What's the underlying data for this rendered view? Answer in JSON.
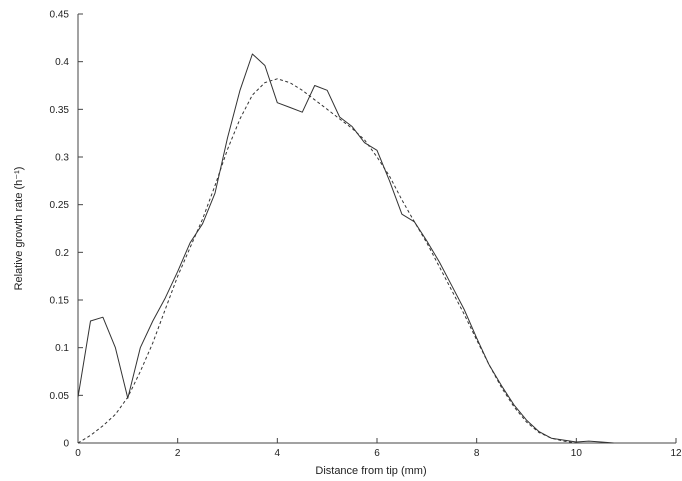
{
  "chart_data": {
    "type": "line",
    "title": "",
    "xlabel": "Distance from tip (mm)",
    "ylabel": "Relative growth rate (h⁻¹)",
    "xlim": [
      0,
      12
    ],
    "ylim": [
      0,
      0.45
    ],
    "x_ticks": [
      0,
      2,
      4,
      6,
      8,
      10,
      12
    ],
    "x_tick_labels": [
      "0",
      "2",
      "4",
      "6",
      "8",
      "10",
      "12"
    ],
    "y_ticks": [
      0,
      0.05,
      0.1,
      0.15,
      0.2,
      0.25,
      0.3,
      0.35,
      0.4,
      0.45
    ],
    "y_tick_labels": [
      "0",
      "0.05",
      "0.1",
      "0.15",
      "0.2",
      "0.25",
      "0.3",
      "0.35",
      "0.4",
      "0.45"
    ],
    "grid": false,
    "legend": "none",
    "series": [
      {
        "style": "solid",
        "color": "#333333",
        "points": [
          [
            0.0,
            0.048
          ],
          [
            0.25,
            0.128
          ],
          [
            0.5,
            0.132
          ],
          [
            0.75,
            0.1
          ],
          [
            1.0,
            0.047
          ],
          [
            1.25,
            0.1
          ],
          [
            1.5,
            0.128
          ],
          [
            1.75,
            0.152
          ],
          [
            2.0,
            0.18
          ],
          [
            2.25,
            0.21
          ],
          [
            2.5,
            0.23
          ],
          [
            2.75,
            0.262
          ],
          [
            3.0,
            0.32
          ],
          [
            3.25,
            0.37
          ],
          [
            3.5,
            0.408
          ],
          [
            3.75,
            0.396
          ],
          [
            4.0,
            0.357
          ],
          [
            4.25,
            0.352
          ],
          [
            4.5,
            0.347
          ],
          [
            4.75,
            0.375
          ],
          [
            5.0,
            0.37
          ],
          [
            5.25,
            0.342
          ],
          [
            5.5,
            0.332
          ],
          [
            5.75,
            0.315
          ],
          [
            6.0,
            0.307
          ],
          [
            6.25,
            0.275
          ],
          [
            6.5,
            0.24
          ],
          [
            6.75,
            0.232
          ],
          [
            7.0,
            0.212
          ],
          [
            7.25,
            0.19
          ],
          [
            7.5,
            0.165
          ],
          [
            7.75,
            0.14
          ],
          [
            8.0,
            0.11
          ],
          [
            8.25,
            0.082
          ],
          [
            8.5,
            0.06
          ],
          [
            8.75,
            0.04
          ],
          [
            9.0,
            0.024
          ],
          [
            9.25,
            0.012
          ],
          [
            9.5,
            0.005
          ],
          [
            9.75,
            0.003
          ],
          [
            10.0,
            0.001
          ],
          [
            10.25,
            0.002
          ],
          [
            10.5,
            0.001
          ],
          [
            10.75,
            0.0
          ]
        ]
      },
      {
        "style": "dashed",
        "color": "#333333",
        "points": [
          [
            0.0,
            0.0
          ],
          [
            0.25,
            0.008
          ],
          [
            0.5,
            0.018
          ],
          [
            0.75,
            0.03
          ],
          [
            1.0,
            0.048
          ],
          [
            1.25,
            0.075
          ],
          [
            1.5,
            0.105
          ],
          [
            1.75,
            0.14
          ],
          [
            2.0,
            0.175
          ],
          [
            2.25,
            0.205
          ],
          [
            2.5,
            0.235
          ],
          [
            2.75,
            0.27
          ],
          [
            3.0,
            0.308
          ],
          [
            3.25,
            0.34
          ],
          [
            3.5,
            0.365
          ],
          [
            3.75,
            0.378
          ],
          [
            4.0,
            0.382
          ],
          [
            4.25,
            0.378
          ],
          [
            4.5,
            0.37
          ],
          [
            4.75,
            0.36
          ],
          [
            5.0,
            0.35
          ],
          [
            5.25,
            0.34
          ],
          [
            5.5,
            0.33
          ],
          [
            5.75,
            0.318
          ],
          [
            6.0,
            0.3
          ],
          [
            6.25,
            0.28
          ],
          [
            6.5,
            0.255
          ],
          [
            6.75,
            0.232
          ],
          [
            7.0,
            0.21
          ],
          [
            7.25,
            0.185
          ],
          [
            7.5,
            0.16
          ],
          [
            7.75,
            0.135
          ],
          [
            8.0,
            0.108
          ],
          [
            8.25,
            0.082
          ],
          [
            8.5,
            0.058
          ],
          [
            8.75,
            0.038
          ],
          [
            9.0,
            0.022
          ],
          [
            9.25,
            0.011
          ],
          [
            9.5,
            0.005
          ],
          [
            9.75,
            0.002
          ],
          [
            10.0,
            0.0
          ]
        ]
      }
    ]
  }
}
